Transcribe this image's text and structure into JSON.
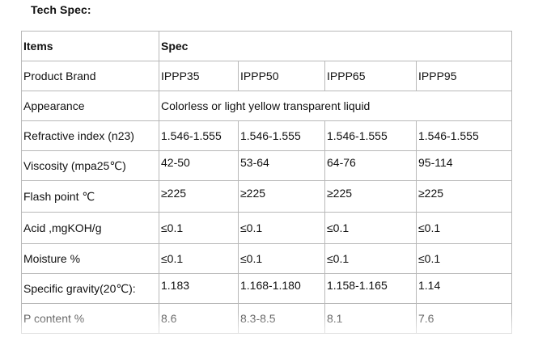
{
  "title": "Tech Spec:",
  "table": {
    "header": {
      "items": "Items",
      "spec": "Spec"
    },
    "brand": {
      "label": "Product Brand",
      "values": [
        "IPPP35",
        "IPPP50",
        "IPPP65",
        "IPPP95"
      ]
    },
    "appearance": {
      "label": "Appearance",
      "value": "Colorless or light yellow transparent liquid"
    },
    "refractive": {
      "label": "Refractive index (n23)",
      "values": [
        "1.546-1.555",
        "1.546-1.555",
        "1.546-1.555",
        "1.546-1.555"
      ]
    },
    "viscosity": {
      "label": "Viscosity (mpa25℃)",
      "values": [
        "42-50",
        "53-64",
        "64-76",
        "95-114"
      ]
    },
    "flash": {
      "label": "Flash point ℃",
      "values": [
        "≥225",
        "≥225",
        "≥225",
        "≥225"
      ]
    },
    "acid": {
      "label": "Acid ,mgKOH/g",
      "values": [
        "≤0.1",
        "≤0.1",
        "≤0.1",
        "≤0.1"
      ]
    },
    "moisture": {
      "label": "Moisture %",
      "values": [
        "≤0.1",
        "≤0.1",
        "≤0.1",
        "≤0.1"
      ]
    },
    "gravity": {
      "label": "Specific gravity(20℃):",
      "values": [
        "1.183",
        "1.168-1.180",
        "1.158-1.165",
        "1.14"
      ]
    },
    "p_content": {
      "label": "P content %",
      "values": [
        "8.6",
        "8.3-8.5",
        "8.1",
        "7.6"
      ]
    }
  }
}
